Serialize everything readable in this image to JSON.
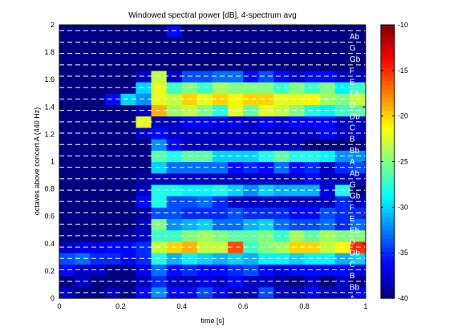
{
  "chart_data": {
    "type": "heatmap",
    "title": "Windowed spectral power [dB], 4-spectrum avg",
    "xlabel": "time [s]",
    "ylabel": "octaves above concert A (440 Hz)",
    "xlim": [
      0,
      1
    ],
    "ylim": [
      0,
      2
    ],
    "x_ticks": [
      "0",
      "0.2",
      "0.4",
      "0.6",
      "0.8",
      "1"
    ],
    "y_ticks": [
      "0",
      "0.2",
      "0.4",
      "0.6",
      "0.8",
      "1",
      "1.2",
      "1.4",
      "1.6",
      "1.8",
      "2"
    ],
    "colorbar_ticks": [
      "-10",
      "-15",
      "-20",
      "-25",
      "-30",
      "-35",
      "-40"
    ],
    "clim": [
      -40,
      -10
    ],
    "colormap": "jet",
    "grid": "white dashed lines at each semitone",
    "note_labels": [
      "A",
      "Bb",
      "B",
      "C",
      "Db",
      "D",
      "Eb",
      "E",
      "F",
      "Gb",
      "G",
      "Ab",
      "A",
      "Bb",
      "B",
      "C",
      "Db",
      "D",
      "Eb",
      "E",
      "F",
      "Gb",
      "G",
      "Ab"
    ],
    "time_bins": 20,
    "frequency_bins": 24,
    "bin_width_octaves": 0.0833,
    "values_dB": [
      [
        -38,
        -40,
        -40,
        -38,
        -40,
        -36,
        -32,
        -36,
        -36,
        -34,
        -36,
        -38,
        -38,
        -34,
        -38,
        -38,
        -36,
        -38,
        -38,
        -36
      ],
      [
        -40,
        -38,
        -40,
        -40,
        -40,
        -38,
        -35,
        -38,
        -38,
        -37,
        -38,
        -36,
        -38,
        -38,
        -39,
        -40,
        -38,
        -40,
        -38,
        -40
      ],
      [
        -36,
        -38,
        -38,
        -40,
        -40,
        -37,
        -33,
        -36,
        -35,
        -36,
        -36,
        -35,
        -34,
        -36,
        -37,
        -36,
        -36,
        -36,
        -36,
        -37
      ],
      [
        -34,
        -33,
        -35,
        -35,
        -36,
        -35,
        -28,
        -31,
        -29,
        -30,
        -31,
        -30,
        -31,
        -29,
        -29,
        -30,
        -29,
        -29,
        -31,
        -30
      ],
      [
        -38,
        -37,
        -37,
        -36,
        -36,
        -35,
        -23,
        -20,
        -19,
        -23,
        -23,
        -16,
        -27,
        -25,
        -24,
        -20,
        -20,
        -23,
        -21,
        -15
      ],
      [
        -40,
        -40,
        -40,
        -40,
        -39,
        -38,
        -27,
        -27,
        -25,
        -24,
        -25,
        -26,
        -26,
        -25,
        -27,
        -24,
        -26,
        -24,
        -25,
        -25
      ],
      [
        -40,
        -40,
        -40,
        -40,
        -40,
        -38,
        -25,
        -32,
        -31,
        -30,
        -33,
        -33,
        -31,
        -30,
        -33,
        -34,
        -34,
        -33,
        -35,
        -33
      ],
      [
        -40,
        -40,
        -40,
        -40,
        -40,
        -39,
        -34,
        -34,
        -35,
        -35,
        -35,
        -34,
        -35,
        -35,
        -35,
        -36,
        -36,
        -34,
        -35,
        -35
      ],
      [
        -40,
        -40,
        -40,
        -40,
        -40,
        -36,
        -28,
        -34,
        -34,
        -33,
        -35,
        -38,
        -38,
        -38,
        -38,
        -38,
        -38,
        -38,
        -35,
        -38
      ],
      [
        -40,
        -40,
        -40,
        -40,
        -40,
        -38,
        -28,
        -28,
        -29,
        -29,
        -28,
        -30,
        -32,
        -30,
        -31,
        -31,
        -31,
        -37,
        -28,
        -40
      ],
      [
        -40,
        -40,
        -40,
        -40,
        -40,
        -39,
        -38,
        -38,
        -38,
        -38,
        -38,
        -38,
        -38,
        -38,
        -38,
        -38,
        -36,
        -38,
        -38,
        -38
      ],
      [
        -40,
        -40,
        -40,
        -40,
        -40,
        -40,
        -30,
        -33,
        -33,
        -33,
        -33,
        -36,
        -35,
        -36,
        -33,
        -36,
        -35,
        -38,
        -35,
        -34
      ],
      [
        -40,
        -40,
        -40,
        -40,
        -40,
        -40,
        -26,
        -28,
        -26,
        -26,
        -30,
        -30,
        -30,
        -28,
        -26,
        -28,
        -28,
        -29,
        -32,
        -32
      ],
      [
        -40,
        -40,
        -40,
        -40,
        -40,
        -40,
        -32,
        -36,
        -38,
        -38,
        -38,
        -38,
        -38,
        -38,
        -38,
        -38,
        -40,
        -40,
        -40,
        -40
      ],
      [
        -40,
        -40,
        -40,
        -40,
        -40,
        -38,
        -36,
        -38,
        -38,
        -38,
        -38,
        -38,
        -38,
        -38,
        -38,
        -38,
        -38,
        -36,
        -38,
        -38
      ],
      [
        -40,
        -40,
        -40,
        -40,
        -40,
        -22,
        -38,
        -38,
        -36,
        -36,
        -37,
        -37,
        -38,
        -36,
        -37,
        -36,
        -36,
        -36,
        -38,
        -38
      ],
      [
        -40,
        -40,
        -40,
        -40,
        -40,
        -38,
        -19,
        -24,
        -23,
        -25,
        -28,
        -22,
        -26,
        -22,
        -23,
        -25,
        -28,
        -29,
        -27,
        -26
      ],
      [
        -40,
        -40,
        -40,
        -36,
        -30,
        -32,
        -22,
        -23,
        -20,
        -22,
        -20,
        -21,
        -20,
        -20,
        -22,
        -22,
        -21,
        -24,
        -25,
        -23
      ],
      [
        -40,
        -40,
        -40,
        -40,
        -40,
        -30,
        -22,
        -27,
        -25,
        -27,
        -24,
        -25,
        -25,
        -25,
        -27,
        -25,
        -27,
        -25,
        -29,
        -27
      ],
      [
        -40,
        -40,
        -40,
        -40,
        -40,
        -38,
        -23,
        -38,
        -34,
        -34,
        -33,
        -33,
        -36,
        -34,
        -36,
        -38,
        -36,
        -36,
        -38,
        -38
      ],
      [
        -40,
        -40,
        -40,
        -40,
        -40,
        -40,
        -40,
        -40,
        -40,
        -40,
        -40,
        -40,
        -40,
        -40,
        -40,
        -40,
        -40,
        -40,
        -40,
        -40
      ],
      [
        -40,
        -40,
        -40,
        -40,
        -40,
        -40,
        -40,
        -40,
        -40,
        -40,
        -40,
        -40,
        -40,
        -40,
        -40,
        -40,
        -40,
        -40,
        -40,
        -40
      ],
      [
        -40,
        -40,
        -40,
        -40,
        -40,
        -40,
        -40,
        -40,
        -40,
        -40,
        -40,
        -40,
        -40,
        -40,
        -40,
        -40,
        -40,
        -40,
        -40,
        -40
      ],
      [
        -40,
        -40,
        -40,
        -40,
        -40,
        -40,
        -40,
        -36,
        -40,
        -40,
        -40,
        -40,
        -40,
        -40,
        -40,
        -40,
        -40,
        -40,
        -40,
        -40
      ]
    ]
  }
}
